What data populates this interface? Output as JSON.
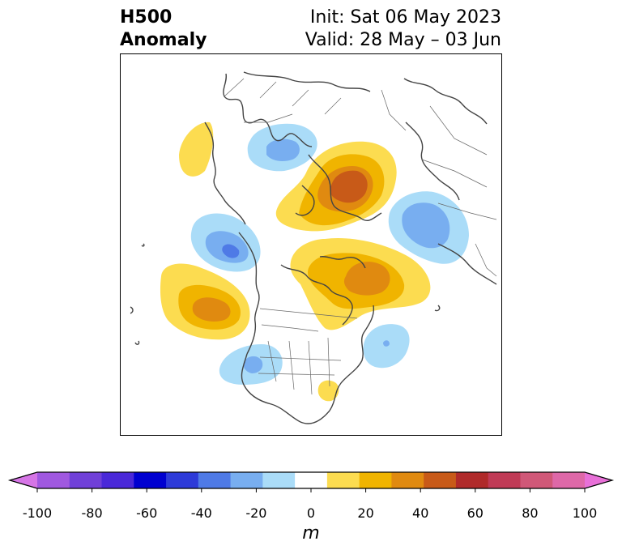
{
  "title": {
    "left_line1": "H500",
    "left_line2": "Anomaly",
    "right_line1": "Init: Sat 06 May 2023",
    "right_line2": "Valid: 28 May – 03 Jun"
  },
  "colorbar": {
    "unit": "m",
    "tick_labels": [
      "-100",
      "-80",
      "-60",
      "-40",
      "-20",
      "0",
      "20",
      "40",
      "60",
      "80",
      "100"
    ],
    "colors": [
      "#d675e6",
      "#a058e0",
      "#7040d8",
      "#4a28d8",
      "#0000d0",
      "#2d3ad8",
      "#4f7ae6",
      "#78aef0",
      "#aadcf8",
      "#ffffff",
      "#fcdc50",
      "#f0b400",
      "#e08a10",
      "#c85a18",
      "#b02a2a",
      "#c03a56",
      "#d05878",
      "#de68a8",
      "#e870d8"
    ]
  },
  "map": {
    "colors": {
      "coast": "#444444",
      "yellow": "#fcdc50",
      "gold": "#f0b400",
      "orange": "#e08a10",
      "dark_orange": "#c85a18",
      "light_blue": "#aadcf8",
      "mid_blue": "#78aef0",
      "blue": "#4f7ae6"
    }
  }
}
